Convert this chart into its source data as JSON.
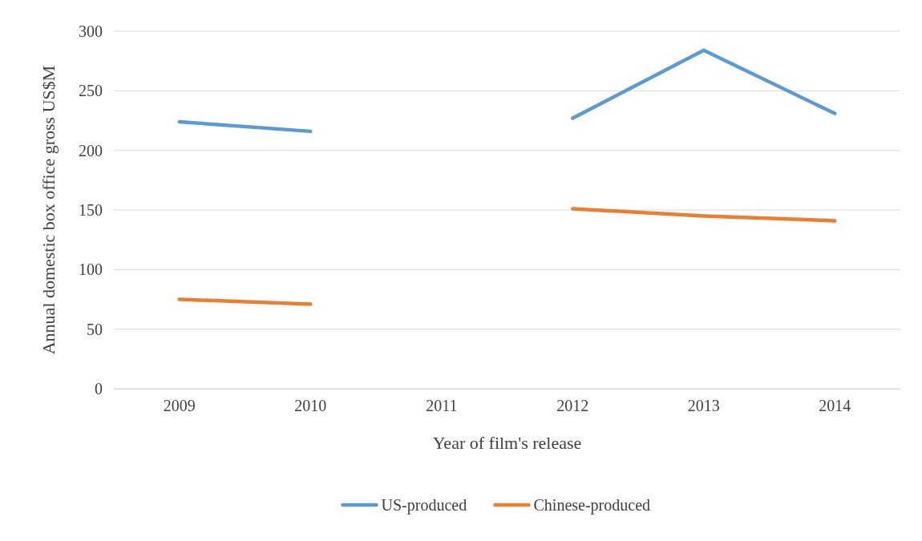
{
  "chart_data": {
    "type": "line",
    "xlabel": "Year of film's release",
    "ylabel": "Annual domestic box office  gross  US$M",
    "categories": [
      "2009",
      "2010",
      "2011",
      "2012",
      "2013",
      "2014"
    ],
    "series": [
      {
        "name": "US-produced",
        "color": "#5b9bd5",
        "values": [
          224,
          216,
          null,
          227,
          284,
          231
        ]
      },
      {
        "name": "Chinese-produced",
        "color": "#ed7d31",
        "values": [
          75,
          71,
          null,
          151,
          145,
          141
        ]
      }
    ],
    "ylim": [
      0,
      300
    ],
    "yticks": [
      0,
      50,
      100,
      150,
      200,
      250,
      300
    ],
    "grid": "y",
    "legend": "bottom",
    "marker": "none",
    "line_style": "solid"
  }
}
